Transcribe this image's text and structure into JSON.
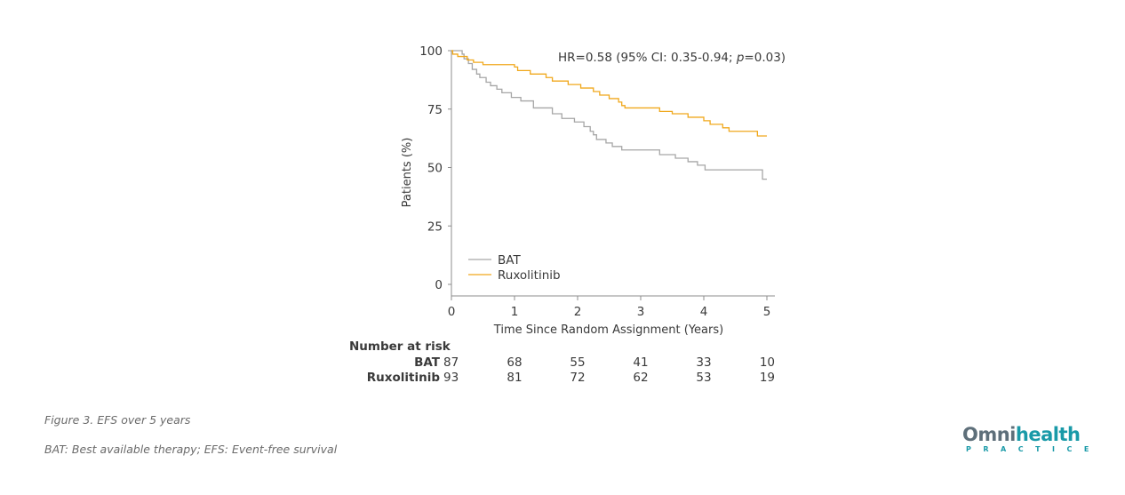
{
  "chart_data": {
    "type": "line",
    "subtype": "kaplan-meier",
    "title": "",
    "xlabel": "Time Since Random Assignment (Years)",
    "ylabel": "Patients (%)",
    "xlim": [
      0,
      5
    ],
    "ylim": [
      0,
      100
    ],
    "xticks": [
      "0",
      "1",
      "2",
      "3",
      "4",
      "5"
    ],
    "yticks": [
      "0",
      "25",
      "50",
      "75",
      "100"
    ],
    "grid": false,
    "annotation": {
      "pre": "HR=0.58 (95% CI: 0.35-0.94; ",
      "p_italic": "p",
      "post": "=0.03)"
    },
    "legend": {
      "position": "bottom-left"
    },
    "series": [
      {
        "name": "BAT",
        "color": "#a6a6a6",
        "steps": [
          [
            0,
            100
          ],
          [
            0.17,
            98.5
          ],
          [
            0.2,
            96.5
          ],
          [
            0.27,
            94.5
          ],
          [
            0.33,
            92
          ],
          [
            0.4,
            90
          ],
          [
            0.45,
            88.5
          ],
          [
            0.55,
            86.5
          ],
          [
            0.62,
            85
          ],
          [
            0.72,
            83.5
          ],
          [
            0.8,
            82
          ],
          [
            0.95,
            80
          ],
          [
            1.1,
            78.5
          ],
          [
            1.3,
            75.5
          ],
          [
            1.6,
            73
          ],
          [
            1.75,
            71
          ],
          [
            1.95,
            69.5
          ],
          [
            2.1,
            67.5
          ],
          [
            2.2,
            65.5
          ],
          [
            2.25,
            64
          ],
          [
            2.3,
            62
          ],
          [
            2.45,
            60.5
          ],
          [
            2.55,
            59
          ],
          [
            2.7,
            57.5
          ],
          [
            3.3,
            55.5
          ],
          [
            3.55,
            54
          ],
          [
            3.75,
            52.5
          ],
          [
            3.9,
            51
          ],
          [
            4.02,
            49
          ],
          [
            4.93,
            45
          ]
        ],
        "end": 5.0
      },
      {
        "name": "Ruxolitinib",
        "color": "#f0a81c",
        "steps": [
          [
            0,
            100
          ],
          [
            0.02,
            98.5
          ],
          [
            0.1,
            97.5
          ],
          [
            0.25,
            96
          ],
          [
            0.35,
            95
          ],
          [
            0.5,
            94
          ],
          [
            1.0,
            93
          ],
          [
            1.05,
            91.5
          ],
          [
            1.25,
            90
          ],
          [
            1.5,
            88.5
          ],
          [
            1.6,
            87
          ],
          [
            1.85,
            85.5
          ],
          [
            2.05,
            84
          ],
          [
            2.25,
            82.5
          ],
          [
            2.35,
            81
          ],
          [
            2.5,
            79.5
          ],
          [
            2.65,
            78
          ],
          [
            2.7,
            76.5
          ],
          [
            2.75,
            75.5
          ],
          [
            3.3,
            74
          ],
          [
            3.5,
            73
          ],
          [
            3.75,
            71.5
          ],
          [
            4.0,
            70
          ],
          [
            4.1,
            68.5
          ],
          [
            4.3,
            67
          ],
          [
            4.4,
            65.5
          ],
          [
            4.85,
            63.5
          ]
        ],
        "end": 5.0
      }
    ],
    "risk_table": {
      "title": "Number at risk",
      "times": [
        0,
        1,
        2,
        3,
        4,
        5
      ],
      "rows": [
        {
          "name": "BAT",
          "values": [
            "87",
            "68",
            "55",
            "41",
            "33",
            "10"
          ]
        },
        {
          "name": "Ruxolitinib",
          "values": [
            "93",
            "81",
            "72",
            "62",
            "53",
            "19"
          ]
        }
      ]
    }
  },
  "captions": {
    "figure": "Figure 3. EFS over 5 years",
    "abbreviations": "BAT: Best available therapy; EFS: Event-free survival"
  },
  "logo": {
    "main_a": "Omni",
    "main_b": "health",
    "sub": "PRACTICE",
    "color": "#1a9aa8"
  }
}
